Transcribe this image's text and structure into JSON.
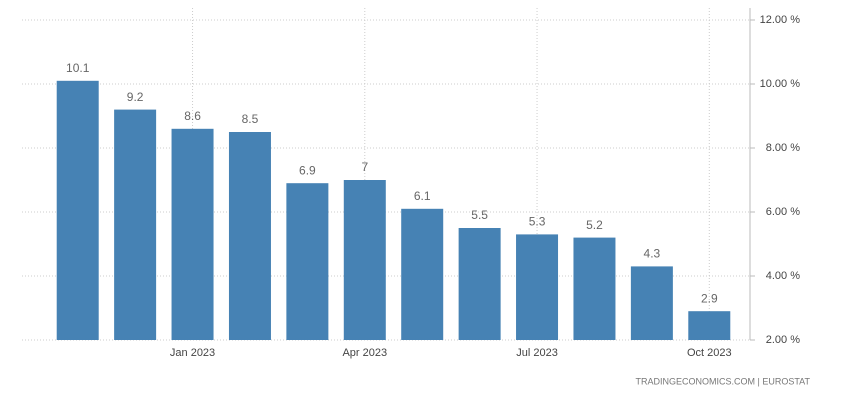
{
  "chart_data": {
    "type": "bar",
    "categories": [
      null,
      null,
      "Jan 2023",
      null,
      null,
      "Apr 2023",
      null,
      null,
      "Jul 2023",
      null,
      null,
      "Oct 2023"
    ],
    "values": [
      10.1,
      9.2,
      8.6,
      8.5,
      6.9,
      7,
      6.1,
      5.5,
      5.3,
      5.2,
      4.3,
      2.9
    ],
    "color": "#4682b4",
    "ylim": [
      2,
      12
    ],
    "yticks": [
      {
        "value": 2,
        "label": "2.00 %"
      },
      {
        "value": 4,
        "label": "4.00 %"
      },
      {
        "value": 6,
        "label": "6.00 %"
      },
      {
        "value": 8,
        "label": "8.00 %"
      },
      {
        "value": 10,
        "label": "10.00 %"
      },
      {
        "value": 12,
        "label": "12.00 %"
      }
    ],
    "grid": true,
    "source": "TRADINGECONOMICS.COM | EUROSTAT"
  }
}
